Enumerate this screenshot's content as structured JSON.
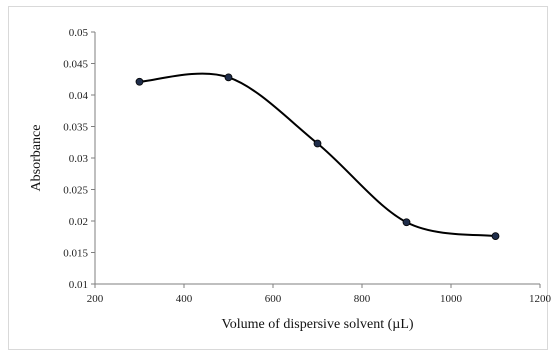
{
  "chart_data": {
    "type": "line",
    "smooth": true,
    "title": "",
    "xlabel": "Volume of dispersive solvent (µL)",
    "ylabel": "Absorbance",
    "xlim": [
      200,
      1200
    ],
    "ylim": [
      0.01,
      0.05
    ],
    "xticks": [
      "200",
      "400",
      "600",
      "800",
      "1000",
      "1200"
    ],
    "yticks": [
      "0.01",
      "0.015",
      "0.02",
      "0.025",
      "0.03",
      "0.035",
      "0.04",
      "0.045",
      "0.05"
    ],
    "grid": false,
    "legend": "none",
    "series": [
      {
        "x": [
          300,
          500,
          700,
          900,
          1100
        ],
        "y": [
          0.0421,
          0.0428,
          0.0323,
          0.0198,
          0.0176
        ]
      }
    ],
    "colors": {
      "line": "#000000",
      "marker": "#1f2d4a",
      "axis": "#7f7f7f"
    }
  }
}
